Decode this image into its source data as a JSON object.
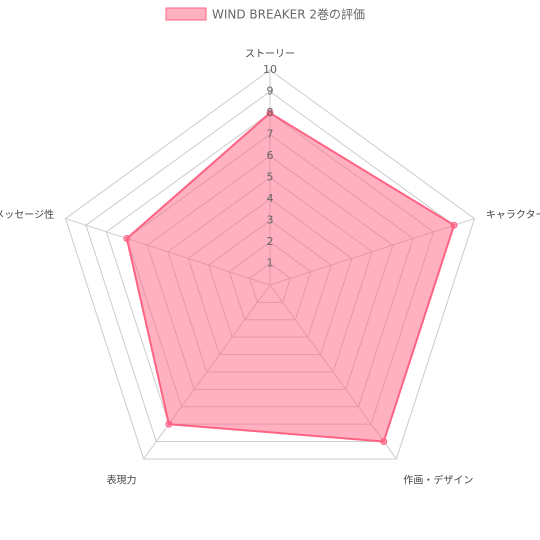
{
  "chart_data": {
    "type": "radar",
    "categories": [
      "ストーリー",
      "キャラクター",
      "作画・デザイン",
      "表現力",
      "メッセージ性"
    ],
    "series": [
      {
        "name": "WIND BREAKER 2巻の評価",
        "color": "#ff6384",
        "values": [
          8,
          9,
          9,
          8,
          7
        ]
      }
    ],
    "ylim": [
      0,
      10
    ],
    "yticks": [
      1,
      2,
      3,
      4,
      5,
      6,
      7,
      8,
      9,
      10
    ],
    "grid": true,
    "legend": "top"
  }
}
